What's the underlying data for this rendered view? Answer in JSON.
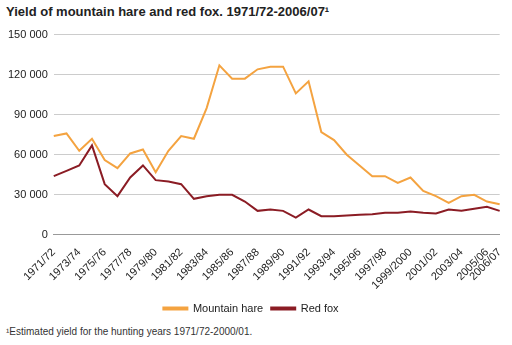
{
  "chart_data": {
    "type": "line",
    "title": "Yield of mountain hare and red fox. 1971/72-2006/07¹",
    "footnote": "¹Estimated yield for the hunting years 1971/72-2000/01.",
    "categories": [
      "1971/72",
      null,
      "1973/74",
      null,
      "1975/76",
      null,
      "1977/78",
      null,
      "1979/80",
      null,
      "1981/82",
      null,
      "1983/84",
      null,
      "1985/86",
      null,
      "1987/88",
      null,
      "1989/90",
      null,
      "1991/92",
      null,
      "1993/94",
      null,
      "1995/96",
      null,
      "1997/98",
      null,
      "1999/2000",
      null,
      "2001/02",
      null,
      "2003/04",
      null,
      "2005/06",
      "2006/07"
    ],
    "series": [
      {
        "name": "Mountain hare",
        "color": "#f4a340",
        "values": [
          74000,
          76000,
          63000,
          72000,
          56000,
          50000,
          61000,
          64000,
          47000,
          63000,
          74000,
          72000,
          95000,
          127000,
          117000,
          117000,
          124000,
          126000,
          126000,
          106000,
          115000,
          77000,
          71000,
          60000,
          52000,
          44000,
          44000,
          39000,
          43000,
          33000,
          29000,
          24000,
          29000,
          30000,
          25000,
          23000
        ]
      },
      {
        "name": "Red fox",
        "color": "#8b1c24",
        "values": [
          44000,
          48000,
          52000,
          67000,
          38000,
          29000,
          43000,
          52000,
          41000,
          40000,
          38000,
          27000,
          29000,
          30000,
          30000,
          25000,
          18000,
          19000,
          18000,
          13000,
          19000,
          14000,
          14000,
          14500,
          15000,
          15500,
          16500,
          16500,
          17500,
          16500,
          16000,
          19000,
          18000,
          19500,
          21000,
          18000
        ]
      }
    ],
    "ylim": [
      0,
      150000
    ],
    "yticks": [
      0,
      {
        "value": 30000,
        "label": "30 000"
      },
      {
        "value": 60000,
        "label": "60 000"
      },
      {
        "value": 90000,
        "label": "90 000"
      },
      {
        "value": 120000,
        "label": "120 000"
      },
      {
        "value": 150000,
        "label": "150 000"
      }
    ],
    "grid": "y",
    "legend": "bottom"
  }
}
